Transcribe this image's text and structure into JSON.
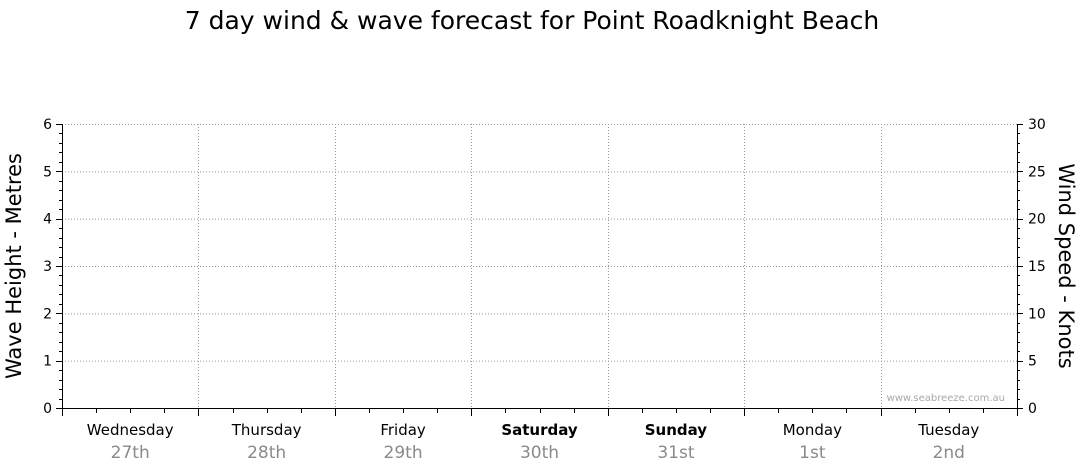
{
  "chart_data": {
    "type": "line",
    "title": "7 day wind & wave forecast for Point Roadknight Beach",
    "ylabel": "Wave Height - Metres",
    "y2label": "Wind Speed - Knots",
    "ylim": [
      0,
      6
    ],
    "y2lim": [
      0,
      30
    ],
    "y_ticks": [
      "0",
      "1",
      "2",
      "3",
      "4",
      "5",
      "6"
    ],
    "y2_ticks": [
      "0",
      "5",
      "10",
      "15",
      "20",
      "25",
      "30"
    ],
    "days": [
      {
        "name": "Wednesday",
        "date": "27th",
        "bold": false
      },
      {
        "name": "Thursday",
        "date": "28th",
        "bold": false
      },
      {
        "name": "Friday",
        "date": "29th",
        "bold": false
      },
      {
        "name": "Saturday",
        "date": "30th",
        "bold": true
      },
      {
        "name": "Sunday",
        "date": "31st",
        "bold": true
      },
      {
        "name": "Monday",
        "date": "1st",
        "bold": false
      },
      {
        "name": "Tuesday",
        "date": "2nd",
        "bold": false
      }
    ],
    "grid": true,
    "series": [],
    "watermark": "www.seabreeze.com.au"
  },
  "colors": {
    "axis": "#000000",
    "grid": "#9a9a9a",
    "date_text": "#8a8a8a",
    "watermark": "#a8a8a8"
  }
}
